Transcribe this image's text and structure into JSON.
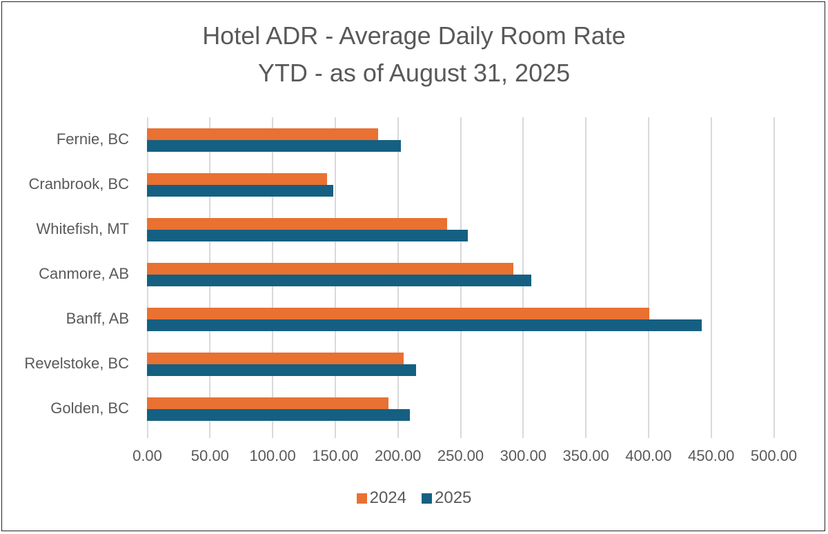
{
  "chart_data": {
    "type": "bar",
    "orientation": "horizontal",
    "title": "Hotel ADR - Average Daily Room Rate",
    "subtitle": "YTD - as of August 31, 2025",
    "categories": [
      "Fernie, BC",
      "Cranbrook, BC",
      "Whitefish, MT",
      "Canmore, AB",
      "Banff, AB",
      "Revelstoke, BC",
      "Golden, BC"
    ],
    "series": [
      {
        "name": "2024",
        "color": "#E97132",
        "values": [
          184.7,
          143.6,
          239.6,
          292.3,
          401.0,
          205.1,
          192.5
        ]
      },
      {
        "name": "2025",
        "color": "#156082",
        "values": [
          202.7,
          148.6,
          256.0,
          306.6,
          443.0,
          215.0,
          210.0
        ]
      }
    ],
    "xlabel": "",
    "ylabel": "",
    "xlim": [
      0,
      500
    ],
    "x_ticks": [
      "0.00",
      "50.00",
      "100.00",
      "150.00",
      "200.00",
      "250.00",
      "300.00",
      "350.00",
      "400.00",
      "450.00",
      "500.00"
    ],
    "grid": true,
    "legend_position": "bottom"
  }
}
